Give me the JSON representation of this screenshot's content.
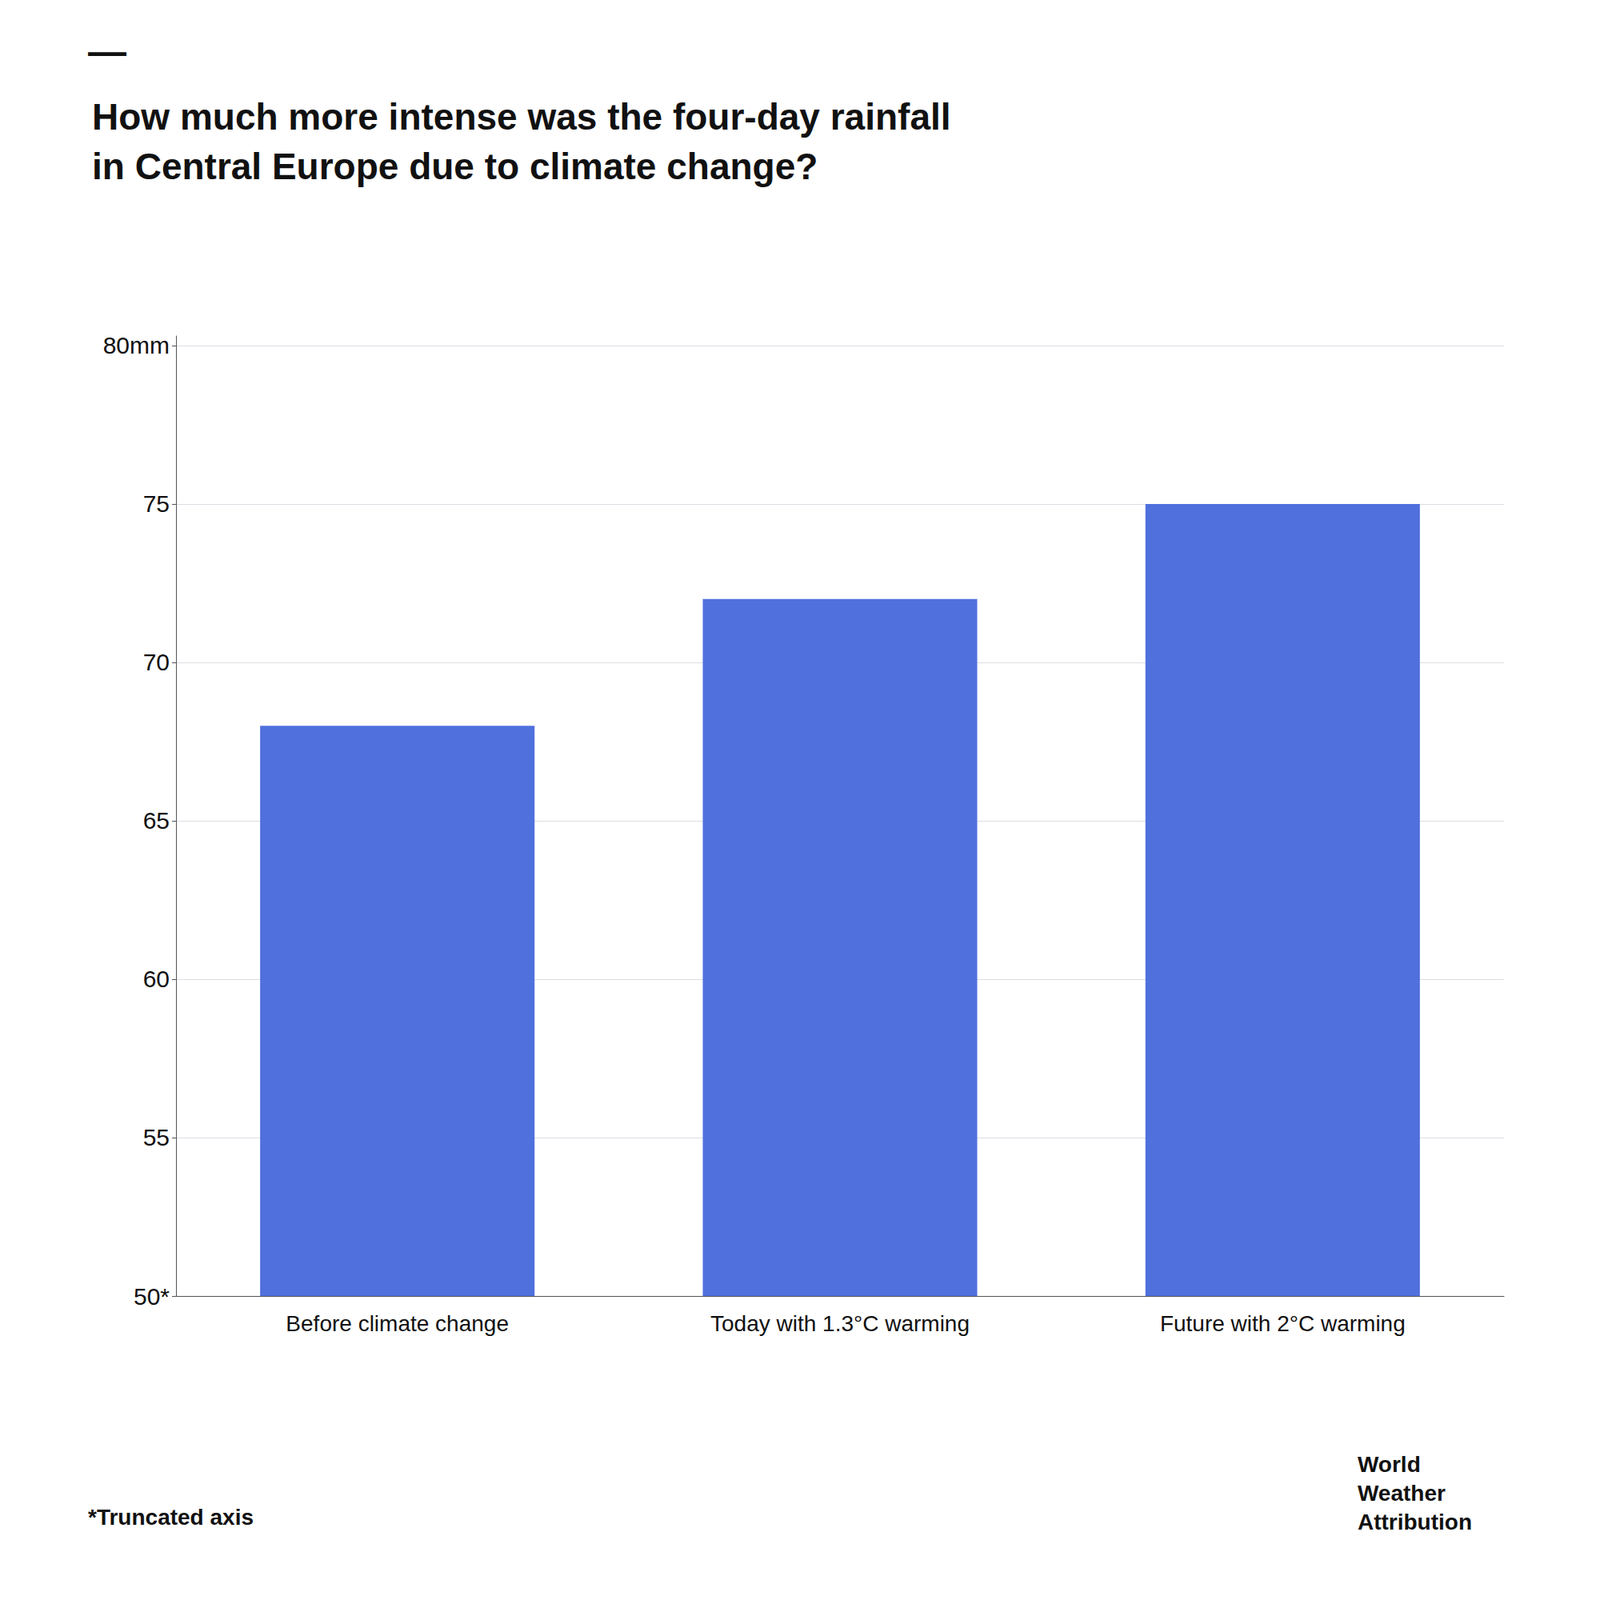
{
  "chart_data": {
    "type": "bar",
    "title": "How much more intense was the four-day rainfall\nin Central Europe due to climate change?",
    "categories": [
      "Before climate change",
      "Today with 1.3°C warming",
      "Future with 2°C warming"
    ],
    "values": [
      68,
      72,
      75
    ],
    "ylim": [
      50,
      80.3
    ],
    "yticks": [
      {
        "value": 50,
        "label": "50*"
      },
      55,
      60,
      65,
      70,
      75,
      {
        "value": 80,
        "label": "80mm"
      }
    ],
    "grid": true,
    "annotations": [
      "—",
      "*Truncated axis",
      "World\nWeather\nAttribution"
    ]
  }
}
